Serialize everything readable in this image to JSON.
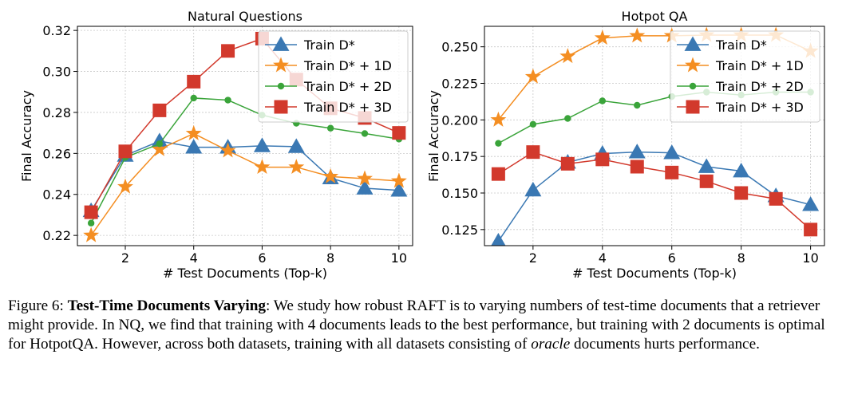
{
  "chart_data": [
    {
      "type": "line",
      "title": "Natural Questions",
      "xlabel": "# Test Documents (Top-k)",
      "ylabel": "Final Accuracy",
      "xlim": [
        0.6,
        10.4
      ],
      "ylim": [
        0.215,
        0.322
      ],
      "xticks": [
        2,
        4,
        6,
        8,
        10
      ],
      "yticks": [
        0.22,
        0.24,
        0.26,
        0.28,
        0.3,
        0.32
      ],
      "ytick_labels": [
        "0.22",
        "0.24",
        "0.26",
        "0.28",
        "0.30",
        "0.32"
      ],
      "grid": true,
      "legend_position": "top-right",
      "x": [
        1,
        2,
        3,
        4,
        5,
        6,
        7,
        8,
        9,
        10
      ],
      "series": [
        {
          "name": "Train D*",
          "color": "#3a78b3",
          "marker": "triangle",
          "values": [
            0.232,
            0.259,
            0.266,
            0.263,
            0.263,
            0.2637,
            0.2633,
            0.248,
            0.243,
            0.242
          ]
        },
        {
          "name": "Train D* + 1D",
          "color": "#f48e22",
          "marker": "star",
          "values": [
            0.22,
            0.2437,
            0.262,
            0.2697,
            0.2613,
            0.2533,
            0.2533,
            0.2487,
            0.2477,
            0.2465
          ]
        },
        {
          "name": "Train D* + 2D",
          "color": "#3aa43a",
          "marker": "circle",
          "values": [
            0.226,
            0.258,
            0.2647,
            0.287,
            0.286,
            0.2787,
            0.2747,
            0.2723,
            0.2697,
            0.267
          ]
        },
        {
          "name": "Train D* + 3D",
          "color": "#d2392c",
          "marker": "square",
          "values": [
            0.2313,
            0.261,
            0.281,
            0.295,
            0.31,
            0.316,
            0.296,
            0.282,
            0.2773,
            0.27
          ]
        }
      ]
    },
    {
      "type": "line",
      "title": "Hotpot QA",
      "xlabel": "# Test Documents (Top-k)",
      "ylabel": "Final Accuracy",
      "xlim": [
        0.6,
        10.4
      ],
      "ylim": [
        0.114,
        0.264
      ],
      "xticks": [
        2,
        4,
        6,
        8,
        10
      ],
      "yticks": [
        0.125,
        0.15,
        0.175,
        0.2,
        0.225,
        0.25
      ],
      "ytick_labels": [
        "0.125",
        "0.150",
        "0.175",
        "0.200",
        "0.225",
        "0.250"
      ],
      "grid": true,
      "legend_position": "top-right",
      "x": [
        1,
        2,
        3,
        4,
        5,
        6,
        7,
        8,
        9,
        10
      ],
      "series": [
        {
          "name": "Train D*",
          "color": "#3a78b3",
          "marker": "triangle",
          "values": [
            0.117,
            0.152,
            0.171,
            0.177,
            0.178,
            0.1775,
            0.168,
            0.165,
            0.148,
            0.142
          ]
        },
        {
          "name": "Train D* + 1D",
          "color": "#f48e22",
          "marker": "star",
          "values": [
            0.2,
            0.2295,
            0.2435,
            0.256,
            0.2575,
            0.2575,
            0.258,
            0.258,
            0.258,
            0.247
          ]
        },
        {
          "name": "Train D* + 2D",
          "color": "#3aa43a",
          "marker": "circle",
          "values": [
            0.184,
            0.197,
            0.201,
            0.213,
            0.21,
            0.216,
            0.219,
            0.217,
            0.219,
            0.219
          ]
        },
        {
          "name": "Train D* + 3D",
          "color": "#d2392c",
          "marker": "square",
          "values": [
            0.163,
            0.178,
            0.17,
            0.173,
            0.168,
            0.164,
            0.158,
            0.15,
            0.146,
            0.125
          ]
        }
      ]
    }
  ],
  "caption": {
    "figure_label": "Figure 6: ",
    "bold_title": "Test-Time Documents Varying",
    "text_1": ": We study how robust RAFT is to varying numbers of test-time documents that a retriever might provide. In NQ, we find that training with 4 documents leads to the best performance, but training with 2 documents is optimal for HotpotQA. However, across both datasets, training with all datasets consisting of ",
    "italic_word": "oracle",
    "text_2": " documents hurts performance."
  }
}
